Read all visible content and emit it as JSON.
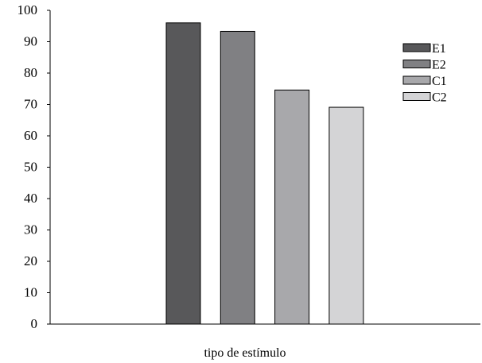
{
  "chart_data": {
    "type": "bar",
    "title": "",
    "xlabel": "tipo de estímulo",
    "ylabel": "",
    "ylim": [
      0,
      100
    ],
    "yticks": [
      "0",
      "10",
      "20",
      "30",
      "40",
      "50",
      "60",
      "70",
      "80",
      "90",
      "100"
    ],
    "grid": false,
    "legend_position": "top-right",
    "series": [
      {
        "name": "E1",
        "value": 96,
        "color": "#58585a"
      },
      {
        "name": "E2",
        "value": 93.3,
        "color": "#808083"
      },
      {
        "name": "C1",
        "value": 74.6,
        "color": "#a8a8ab"
      },
      {
        "name": "C2",
        "value": 69.1,
        "color": "#d4d4d6"
      }
    ]
  }
}
